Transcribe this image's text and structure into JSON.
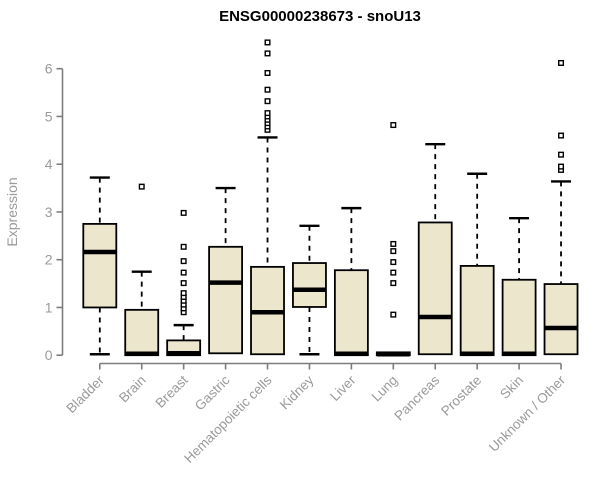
{
  "title": "ENSG00000238673 - snoU13",
  "colors": {
    "box_fill": "#ece6cd",
    "box_border": "#000000",
    "median": "#000000",
    "whisker": "#000000",
    "axis_line": "#7d7d7d",
    "tick_label": "#9a9a9a",
    "axis_label": "#9a9a9a",
    "title": "#000000",
    "background": "#ffffff"
  },
  "chart_data": {
    "type": "boxplot",
    "title": "ENSG00000238673 - snoU13",
    "xlabel": "",
    "ylabel": "Expression",
    "ylim": [
      0,
      6.6
    ],
    "yticks": [
      0,
      1,
      2,
      3,
      4,
      5,
      6
    ],
    "grid": "off",
    "outlier_marker": "open-square",
    "categories": [
      "Bladder",
      "Brain",
      "Breast",
      "Gastric",
      "Hematopoietic cells",
      "Kidney",
      "Liver",
      "Lung",
      "Pancreas",
      "Prostate",
      "Skin",
      "Unknown / Other"
    ],
    "boxes": [
      {
        "label": "Bladder",
        "whislo": 0.02,
        "q1": 1.0,
        "med": 2.16,
        "q3": 2.75,
        "whishi": 3.72,
        "outliers": []
      },
      {
        "label": "Brain",
        "whislo": 0.0,
        "q1": 0.0,
        "med": 0.03,
        "q3": 0.95,
        "whishi": 1.75,
        "outliers": [
          3.53
        ]
      },
      {
        "label": "Breast",
        "whislo": 0.0,
        "q1": 0.0,
        "med": 0.04,
        "q3": 0.31,
        "whishi": 0.63,
        "outliers": [
          0.9,
          0.98,
          1.06,
          1.14,
          1.22,
          1.3,
          1.51,
          1.73,
          1.97,
          2.27,
          2.98
        ]
      },
      {
        "label": "Gastric",
        "whislo": 0.04,
        "q1": 0.04,
        "med": 1.52,
        "q3": 2.27,
        "whishi": 3.5,
        "outliers": []
      },
      {
        "label": "Hematopoietic cells",
        "whislo": 0.02,
        "q1": 0.02,
        "med": 0.9,
        "q3": 1.85,
        "whishi": 4.56,
        "outliers": [
          4.72,
          4.79,
          4.86,
          4.93,
          5.0,
          5.07,
          5.32,
          5.56,
          5.91,
          6.32,
          6.55
        ]
      },
      {
        "label": "Kidney",
        "whislo": 0.02,
        "q1": 1.01,
        "med": 1.37,
        "q3": 1.93,
        "whishi": 2.71,
        "outliers": []
      },
      {
        "label": "Liver",
        "whislo": 0.0,
        "q1": 0.0,
        "med": 0.03,
        "q3": 1.78,
        "whishi": 3.08,
        "outliers": []
      },
      {
        "label": "Lung",
        "whislo": 0.0,
        "q1": 0.0,
        "med": 0.02,
        "q3": 0.06,
        "whishi": 0.06,
        "outliers": [
          0.85,
          1.51,
          1.73,
          1.95,
          2.18,
          2.33,
          4.82
        ]
      },
      {
        "label": "Pancreas",
        "whislo": 0.02,
        "q1": 0.02,
        "med": 0.8,
        "q3": 2.78,
        "whishi": 4.42,
        "outliers": []
      },
      {
        "label": "Prostate",
        "whislo": 0.0,
        "q1": 0.0,
        "med": 0.03,
        "q3": 1.87,
        "whishi": 3.8,
        "outliers": []
      },
      {
        "label": "Skin",
        "whislo": 0.0,
        "q1": 0.0,
        "med": 0.03,
        "q3": 1.58,
        "whishi": 2.87,
        "outliers": []
      },
      {
        "label": "Unknown / Other",
        "whislo": 0.02,
        "q1": 0.02,
        "med": 0.57,
        "q3": 1.49,
        "whishi": 3.64,
        "outliers": [
          3.88,
          3.95,
          4.2,
          4.6,
          6.12
        ]
      }
    ]
  }
}
